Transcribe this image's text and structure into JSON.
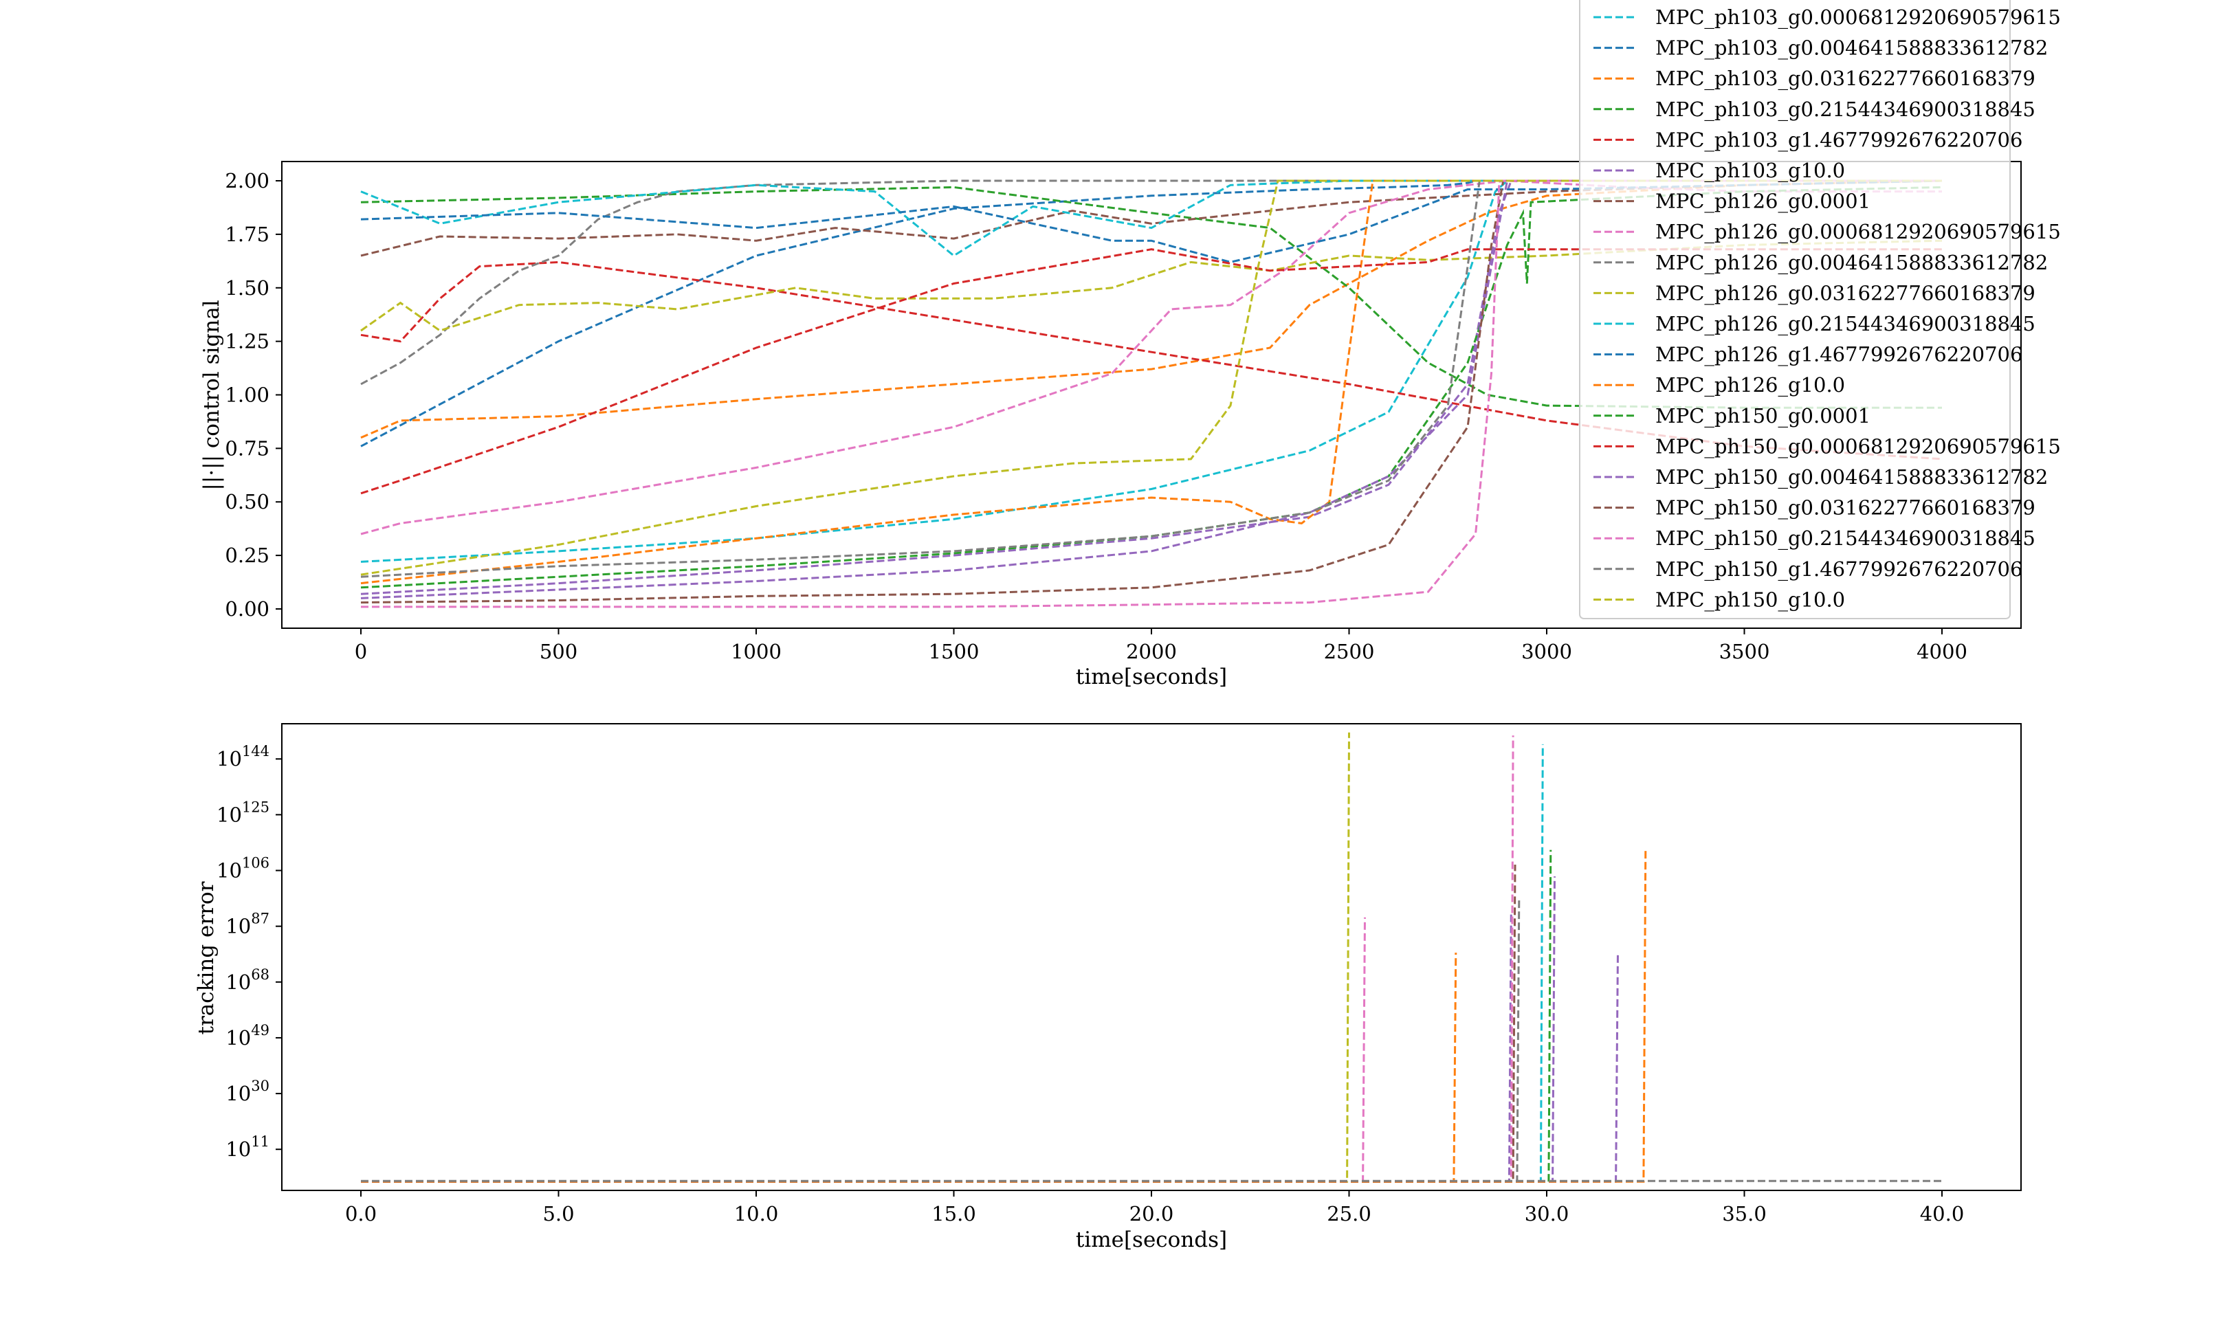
{
  "colors": [
    "#17becf",
    "#1f77b4",
    "#ff7f0e",
    "#2ca02c",
    "#d62728",
    "#9467bd",
    "#8c564b",
    "#e377c2",
    "#7f7f7f",
    "#bcbd22"
  ],
  "legend": {
    "entries": [
      "MPC_ph103_g0.0006812920690579615",
      "MPC_ph103_g0.004641588833612782",
      "MPC_ph103_g0.03162277660168379",
      "MPC_ph103_g0.21544346900318845",
      "MPC_ph103_g1.4677992676220706",
      "MPC_ph103_g10.0",
      "MPC_ph126_g0.0001",
      "MPC_ph126_g0.0006812920690579615",
      "MPC_ph126_g0.004641588833612782",
      "MPC_ph126_g0.03162277660168379",
      "MPC_ph126_g0.21544346900318845",
      "MPC_ph126_g1.4677992676220706",
      "MPC_ph126_g10.0",
      "MPC_ph150_g0.0001",
      "MPC_ph150_g0.0006812920690579615",
      "MPC_ph150_g0.004641588833612782",
      "MPC_ph150_g0.03162277660168379",
      "MPC_ph150_g0.21544346900318845",
      "MPC_ph150_g1.4677992676220706",
      "MPC_ph150_g10.0"
    ]
  },
  "chart_data": [
    {
      "type": "line",
      "xlabel": "time[seconds]",
      "ylabel": "||·|| control signal",
      "xlim": [
        -200,
        4200
      ],
      "ylim": [
        -0.09,
        2.09
      ],
      "xticks": [
        "0",
        "500",
        "1000",
        "1500",
        "2000",
        "2500",
        "3000",
        "3500",
        "4000"
      ],
      "xtick_values": [
        0,
        500,
        1000,
        1500,
        2000,
        2500,
        3000,
        3500,
        4000
      ],
      "yticks": [
        "0.00",
        "0.25",
        "0.50",
        "0.75",
        "1.00",
        "1.25",
        "1.50",
        "1.75",
        "2.00"
      ],
      "ytick_values": [
        0,
        0.25,
        0.5,
        0.75,
        1.0,
        1.25,
        1.5,
        1.75,
        2.0
      ],
      "line_style": "dashed",
      "series": [
        {
          "name": "MPC_ph103_g0.0006812920690579615",
          "color": "#17becf",
          "x": [
            0,
            500,
            1000,
            1500,
            2000,
            2400,
            2600,
            2800,
            2870,
            2900,
            3500,
            4000
          ],
          "y": [
            0.22,
            0.27,
            0.33,
            0.42,
            0.56,
            0.74,
            0.92,
            1.55,
            1.95,
            2.0,
            2.0,
            2.0
          ]
        },
        {
          "name": "MPC_ph103_g0.004641588833612782",
          "color": "#1f77b4",
          "x": [
            0,
            500,
            1000,
            1500,
            2000,
            2400,
            2600,
            2750,
            2800,
            2820,
            3500,
            4000
          ],
          "y": [
            0.76,
            1.25,
            1.65,
            1.87,
            1.93,
            1.96,
            1.97,
            1.98,
            1.99,
            2.0,
            2.0,
            2.0
          ]
        },
        {
          "name": "MPC_ph103_g0.03162277660168379",
          "color": "#ff7f0e",
          "x": [
            0,
            100,
            500,
            1000,
            1500,
            2000,
            2300,
            2400,
            2500,
            2600,
            2700,
            2850,
            3000,
            3500,
            4000
          ],
          "y": [
            0.8,
            0.88,
            0.9,
            0.98,
            1.05,
            1.12,
            1.22,
            1.42,
            1.52,
            1.62,
            1.72,
            1.85,
            1.93,
            1.98,
            2.0
          ]
        },
        {
          "name": "MPC_ph103_g0.21544346900318845",
          "color": "#2ca02c",
          "x": [
            0,
            500,
            1000,
            1500,
            2000,
            2300,
            2500,
            2700,
            2850,
            3000,
            3500,
            4000
          ],
          "y": [
            1.9,
            1.92,
            1.95,
            1.97,
            1.85,
            1.78,
            1.5,
            1.15,
            1.0,
            0.95,
            0.94,
            0.94
          ]
        },
        {
          "name": "MPC_ph103_g1.4677992676220706",
          "color": "#d62728",
          "x": [
            0,
            100,
            200,
            300,
            500,
            1000,
            1500,
            2000,
            2500,
            3000,
            3500,
            4000
          ],
          "y": [
            1.28,
            1.25,
            1.45,
            1.6,
            1.62,
            1.5,
            1.35,
            1.2,
            1.05,
            0.88,
            0.76,
            0.7
          ]
        },
        {
          "name": "MPC_ph103_g10.0",
          "color": "#9467bd",
          "x": [
            0,
            500,
            1000,
            1500,
            2000,
            2400,
            2600,
            2800,
            2880,
            2910,
            3500,
            4000
          ],
          "y": [
            0.07,
            0.12,
            0.18,
            0.25,
            0.33,
            0.43,
            0.58,
            1.05,
            1.85,
            2.0,
            2.0,
            2.0
          ]
        },
        {
          "name": "MPC_ph126_g0.0001",
          "color": "#8c564b",
          "x": [
            0,
            200,
            500,
            800,
            1000,
            1200,
            1500,
            1800,
            2000,
            2500,
            3000,
            3500,
            4000
          ],
          "y": [
            1.65,
            1.74,
            1.73,
            1.75,
            1.72,
            1.78,
            1.73,
            1.86,
            1.8,
            1.9,
            1.95,
            1.98,
            2.0
          ]
        },
        {
          "name": "MPC_ph126_g0.0006812920690579615",
          "color": "#e377c2",
          "x": [
            0,
            100,
            500,
            1000,
            1500,
            1900,
            2050,
            2200,
            2350,
            2500,
            2700,
            2900,
            3200,
            3500,
            4000
          ],
          "y": [
            0.35,
            0.4,
            0.5,
            0.66,
            0.85,
            1.1,
            1.4,
            1.42,
            1.6,
            1.85,
            1.96,
            2.0,
            1.97,
            1.95,
            1.95
          ]
        },
        {
          "name": "MPC_ph126_g0.004641588833612782",
          "color": "#7f7f7f",
          "x": [
            0,
            100,
            200,
            300,
            400,
            500,
            600,
            700,
            800,
            1000,
            1500,
            2000,
            2500,
            3000,
            3500,
            4000
          ],
          "y": [
            1.05,
            1.15,
            1.28,
            1.45,
            1.58,
            1.65,
            1.82,
            1.9,
            1.95,
            1.98,
            2.0,
            2.0,
            2.0,
            2.0,
            2.0,
            2.0
          ]
        },
        {
          "name": "MPC_ph126_g0.03162277660168379",
          "color": "#bcbd22",
          "x": [
            0,
            100,
            200,
            400,
            600,
            800,
            1100,
            1300,
            1600,
            1900,
            2100,
            2300,
            2500,
            2700,
            3000,
            3500,
            4000
          ],
          "y": [
            1.3,
            1.43,
            1.3,
            1.42,
            1.43,
            1.4,
            1.5,
            1.45,
            1.45,
            1.5,
            1.62,
            1.58,
            1.65,
            1.63,
            1.65,
            1.7,
            1.72
          ]
        },
        {
          "name": "MPC_ph126_g0.21544346900318845",
          "color": "#17becf",
          "x": [
            0,
            200,
            500,
            1000,
            1300,
            1500,
            1700,
            2000,
            2200,
            2500,
            3000,
            3500,
            4000
          ],
          "y": [
            1.95,
            1.8,
            1.9,
            1.98,
            1.95,
            1.65,
            1.88,
            1.78,
            1.98,
            2.0,
            2.0,
            2.0,
            2.0
          ]
        },
        {
          "name": "MPC_ph126_g1.4677992676220706",
          "color": "#1f77b4",
          "x": [
            0,
            500,
            1000,
            1500,
            1900,
            2000,
            2200,
            2500,
            2800,
            3000,
            3500,
            4000
          ],
          "y": [
            1.82,
            1.85,
            1.78,
            1.88,
            1.72,
            1.72,
            1.62,
            1.75,
            1.96,
            1.96,
            1.98,
            2.0
          ]
        },
        {
          "name": "MPC_ph126_g10.0",
          "color": "#ff7f0e",
          "x": [
            0,
            500,
            1000,
            1500,
            2000,
            2200,
            2300,
            2380,
            2450,
            2500,
            2560,
            3000,
            3500,
            4000
          ],
          "y": [
            0.12,
            0.22,
            0.33,
            0.44,
            0.52,
            0.5,
            0.42,
            0.4,
            0.5,
            1.2,
            2.0,
            2.0,
            2.0,
            2.0
          ]
        },
        {
          "name": "MPC_ph150_g0.0001",
          "color": "#2ca02c",
          "x": [
            0,
            500,
            1000,
            1500,
            2000,
            2400,
            2600,
            2800,
            2900,
            2940,
            2950,
            2960,
            3500,
            4000
          ],
          "y": [
            0.1,
            0.15,
            0.2,
            0.26,
            0.34,
            0.45,
            0.62,
            1.15,
            1.7,
            1.85,
            1.52,
            1.9,
            1.95,
            1.97
          ]
        },
        {
          "name": "MPC_ph150_g0.0006812920690579615",
          "color": "#d62728",
          "x": [
            0,
            100,
            500,
            1000,
            1500,
            2000,
            2300,
            2500,
            2700,
            2800,
            3000,
            3500,
            4000
          ],
          "y": [
            0.54,
            0.6,
            0.85,
            1.22,
            1.52,
            1.68,
            1.58,
            1.6,
            1.62,
            1.68,
            1.68,
            1.68,
            1.68
          ]
        },
        {
          "name": "MPC_ph150_g0.004641588833612782",
          "color": "#9467bd",
          "x": [
            0,
            500,
            1000,
            1500,
            2000,
            2400,
            2600,
            2800,
            2850,
            2900,
            3500,
            4000
          ],
          "y": [
            0.05,
            0.09,
            0.13,
            0.18,
            0.27,
            0.45,
            0.62,
            1.0,
            1.5,
            2.0,
            2.0,
            2.0
          ]
        },
        {
          "name": "MPC_ph150_g0.03162277660168379",
          "color": "#8c564b",
          "x": [
            0,
            500,
            1000,
            1500,
            2000,
            2400,
            2600,
            2800,
            2860,
            2890,
            3500,
            4000
          ],
          "y": [
            0.03,
            0.04,
            0.06,
            0.07,
            0.1,
            0.18,
            0.3,
            0.85,
            1.7,
            2.0,
            2.0,
            2.0
          ]
        },
        {
          "name": "MPC_ph150_g0.21544346900318845",
          "color": "#e377c2",
          "x": [
            0,
            500,
            1000,
            1500,
            2000,
            2400,
            2700,
            2820,
            2860,
            2880,
            3500,
            4000
          ],
          "y": [
            0.01,
            0.01,
            0.01,
            0.01,
            0.02,
            0.03,
            0.08,
            0.35,
            1.1,
            2.0,
            2.0,
            2.0
          ]
        },
        {
          "name": "MPC_ph150_g1.4677992676220706",
          "color": "#7f7f7f",
          "x": [
            0,
            500,
            1000,
            1500,
            2000,
            2400,
            2600,
            2750,
            2800,
            2830,
            3500,
            4000
          ],
          "y": [
            0.15,
            0.2,
            0.23,
            0.27,
            0.34,
            0.45,
            0.6,
            0.95,
            1.6,
            2.0,
            2.0,
            2.0
          ]
        },
        {
          "name": "MPC_ph150_g10.0",
          "color": "#bcbd22",
          "x": [
            0,
            500,
            1000,
            1500,
            1800,
            2100,
            2200,
            2270,
            2320,
            3000,
            3500,
            4000
          ],
          "y": [
            0.16,
            0.3,
            0.48,
            0.62,
            0.68,
            0.7,
            0.95,
            1.6,
            2.0,
            2.0,
            2.0,
            2.0
          ]
        }
      ]
    },
    {
      "type": "line",
      "xlabel": "time[seconds]",
      "ylabel": "tracking error",
      "y_scale": "log",
      "xlim": [
        -2.0,
        42.0
      ],
      "ylim_exponent": [
        -3,
        156
      ],
      "xticks": [
        "0.0",
        "5.0",
        "10.0",
        "15.0",
        "20.0",
        "25.0",
        "30.0",
        "35.0",
        "40.0"
      ],
      "xtick_values": [
        0,
        5,
        10,
        15,
        20,
        25,
        30,
        35,
        40
      ],
      "ytick_base": "10",
      "ytick_exponents": [
        "11",
        "30",
        "49",
        "68",
        "87",
        "106",
        "125",
        "144"
      ],
      "ytick_exponent_values": [
        11,
        30,
        49,
        68,
        87,
        106,
        125,
        144
      ],
      "line_style": "dashed",
      "baseline_exponent": 0,
      "spikes": [
        {
          "color": "#bcbd22",
          "x": 25.0,
          "peak_exponent": 153
        },
        {
          "color": "#e377c2",
          "x": 25.4,
          "peak_exponent": 90
        },
        {
          "color": "#ff7f0e",
          "x": 27.7,
          "peak_exponent": 78
        },
        {
          "color": "#9467bd",
          "x": 29.1,
          "peak_exponent": 92
        },
        {
          "color": "#e377c2",
          "x": 29.15,
          "peak_exponent": 152
        },
        {
          "color": "#8c564b",
          "x": 29.2,
          "peak_exponent": 108
        },
        {
          "color": "#7f7f7f",
          "x": 29.3,
          "peak_exponent": 96
        },
        {
          "color": "#17becf",
          "x": 29.9,
          "peak_exponent": 149
        },
        {
          "color": "#2ca02c",
          "x": 30.1,
          "peak_exponent": 113
        },
        {
          "color": "#9467bd",
          "x": 30.2,
          "peak_exponent": 104
        },
        {
          "color": "#9467bd",
          "x": 31.8,
          "peak_exponent": 78
        },
        {
          "color": "#ff7f0e",
          "x": 32.5,
          "peak_exponent": 113
        }
      ]
    }
  ]
}
